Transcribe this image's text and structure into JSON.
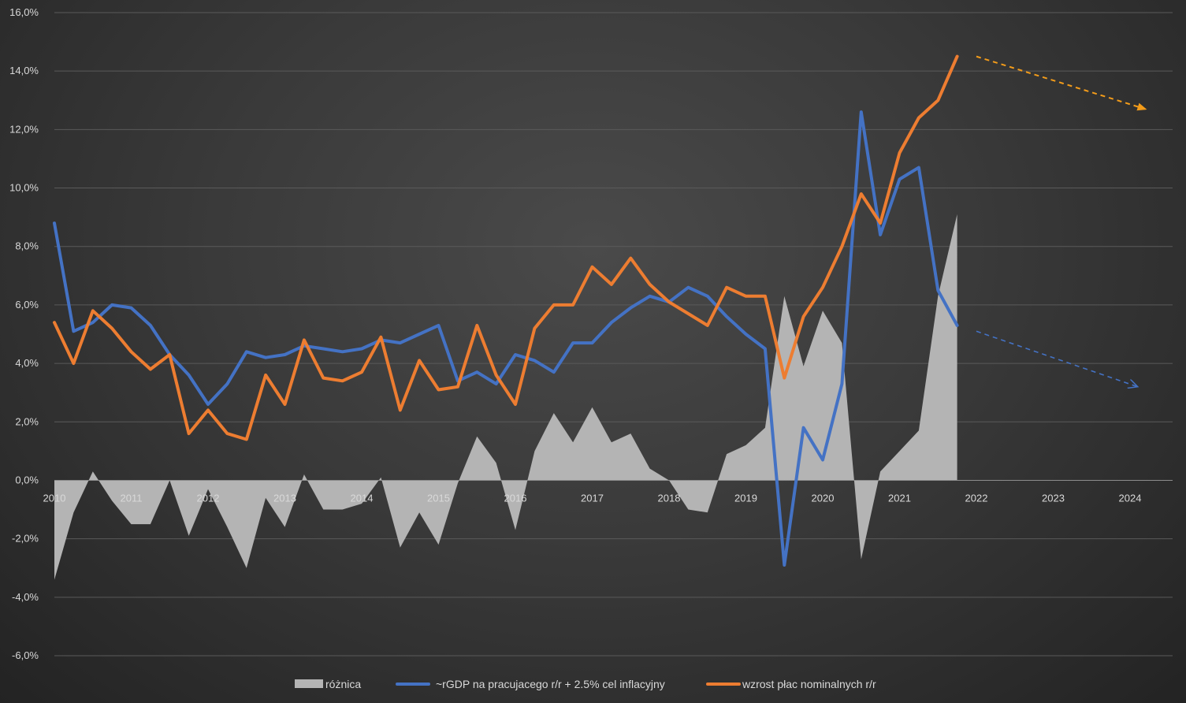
{
  "chart_data": {
    "type": "line",
    "title": "",
    "xlabel": "",
    "ylabel": "",
    "ylim": [
      -6,
      16
    ],
    "y_ticks": [
      "-6,0%",
      "-4,0%",
      "-2,0%",
      "0,0%",
      "2,0%",
      "4,0%",
      "6,0%",
      "8,0%",
      "10,0%",
      "12,0%",
      "14,0%",
      "16,0%"
    ],
    "x_tick_labels": [
      "2010",
      "2011",
      "2012",
      "2013",
      "2014",
      "2015",
      "2016",
      "2017",
      "2018",
      "2019",
      "2020",
      "2021",
      "2022",
      "2023",
      "2024"
    ],
    "x_range": [
      2010,
      2024
    ],
    "x": [
      2010.0,
      2010.25,
      2010.5,
      2010.75,
      2011.0,
      2011.25,
      2011.5,
      2011.75,
      2012.0,
      2012.25,
      2012.5,
      2012.75,
      2013.0,
      2013.25,
      2013.5,
      2013.75,
      2014.0,
      2014.25,
      2014.5,
      2014.75,
      2015.0,
      2015.25,
      2015.5,
      2015.75,
      2016.0,
      2016.25,
      2016.5,
      2016.75,
      2017.0,
      2017.25,
      2017.5,
      2017.75,
      2018.0,
      2018.25,
      2018.5,
      2018.75,
      2019.0,
      2019.25,
      2019.5,
      2019.75,
      2020.0,
      2020.25,
      2020.5,
      2020.75,
      2021.0,
      2021.25,
      2021.5,
      2021.75
    ],
    "series": [
      {
        "name": "różnica",
        "kind": "area",
        "color": "#b4b4b4",
        "values": [
          -3.4,
          -1.1,
          0.3,
          -0.7,
          -1.5,
          -1.5,
          0.0,
          -1.9,
          -0.3,
          -1.6,
          -3.0,
          -0.6,
          -1.6,
          0.2,
          -1.0,
          -1.0,
          -0.8,
          0.1,
          -2.3,
          -1.1,
          -2.2,
          -0.1,
          1.5,
          0.6,
          -1.7,
          1.0,
          2.3,
          1.3,
          2.5,
          1.3,
          1.6,
          0.4,
          0.0,
          -1.0,
          -1.1,
          0.9,
          1.2,
          1.8,
          6.3,
          3.9,
          5.8,
          4.7,
          -2.7,
          0.3,
          1.0,
          1.7,
          6.3,
          9.1
        ]
      },
      {
        "name": "~rGDP na pracujacego r/r + 2.5% cel inflacyjny",
        "kind": "line",
        "color": "#4472c4",
        "values": [
          8.8,
          5.1,
          5.4,
          6.0,
          5.9,
          5.3,
          4.3,
          3.6,
          2.6,
          3.3,
          4.4,
          4.2,
          4.3,
          4.6,
          4.5,
          4.4,
          4.5,
          4.8,
          4.7,
          5.0,
          5.3,
          3.4,
          3.7,
          3.3,
          4.3,
          4.1,
          3.7,
          4.7,
          4.7,
          5.4,
          5.9,
          6.3,
          6.1,
          6.6,
          6.3,
          5.6,
          5.0,
          4.5,
          -2.9,
          1.8,
          0.7,
          3.3,
          12.6,
          8.4,
          10.3,
          10.7,
          6.5,
          5.3
        ]
      },
      {
        "name": "wzrost płac nominalnych r/r",
        "kind": "line",
        "color": "#ed7d31",
        "values": [
          5.4,
          4.0,
          5.8,
          5.2,
          4.4,
          3.8,
          4.3,
          1.6,
          2.4,
          1.6,
          1.4,
          3.6,
          2.6,
          4.8,
          3.5,
          3.4,
          3.7,
          4.9,
          2.4,
          4.1,
          3.1,
          3.2,
          5.3,
          3.6,
          2.6,
          5.2,
          6.0,
          6.0,
          7.3,
          6.7,
          7.6,
          6.7,
          6.1,
          5.7,
          5.3,
          6.6,
          6.3,
          6.3,
          3.5,
          5.6,
          6.6,
          8.0,
          9.8,
          8.8,
          11.2,
          12.4,
          13.0,
          14.5
        ]
      }
    ],
    "annotations": [
      {
        "type": "dashed-arrow",
        "color": "#ed7d31",
        "from": [
          2022.0,
          14.5
        ],
        "to": [
          2024.2,
          12.7
        ]
      },
      {
        "type": "dashed-arrow",
        "color": "#4472c4",
        "from": [
          2022.0,
          5.1
        ],
        "to": [
          2024.1,
          3.2
        ]
      }
    ],
    "legend_position": "bottom-center",
    "grid": true
  }
}
